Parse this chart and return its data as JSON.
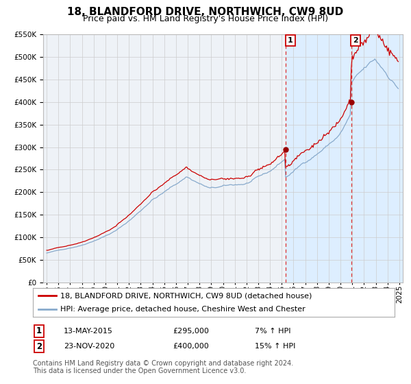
{
  "title": "18, BLANDFORD DRIVE, NORTHWICH, CW9 8UD",
  "subtitle": "Price paid vs. HM Land Registry's House Price Index (HPI)",
  "ylim": [
    0,
    550000
  ],
  "yticks": [
    0,
    50000,
    100000,
    150000,
    200000,
    250000,
    300000,
    350000,
    400000,
    450000,
    500000,
    550000
  ],
  "xstart_year": 1995,
  "xend_year": 2025,
  "transaction1_date": 2015.36,
  "transaction1_price": 295000,
  "transaction1_label": "1",
  "transaction1_text": "13-MAY-2015",
  "transaction1_amount": "£295,000",
  "transaction1_pct": "7% ↑ HPI",
  "transaction2_date": 2020.9,
  "transaction2_price": 400000,
  "transaction2_label": "2",
  "transaction2_text": "23-NOV-2020",
  "transaction2_amount": "£400,000",
  "transaction2_pct": "15% ↑ HPI",
  "color_red": "#cc0000",
  "color_blue": "#88aacc",
  "color_shading": "#ddeeff",
  "color_grid": "#cccccc",
  "color_dashed": "#dd3333",
  "legend_entry1": "18, BLANDFORD DRIVE, NORTHWICH, CW9 8UD (detached house)",
  "legend_entry2": "HPI: Average price, detached house, Cheshire West and Chester",
  "footnote": "Contains HM Land Registry data © Crown copyright and database right 2024.\nThis data is licensed under the Open Government Licence v3.0.",
  "background_color": "#ffffff",
  "plot_bg_color": "#eef2f7",
  "title_fontsize": 11,
  "subtitle_fontsize": 9,
  "tick_fontsize": 7.5,
  "legend_fontsize": 8,
  "footnote_fontsize": 7
}
